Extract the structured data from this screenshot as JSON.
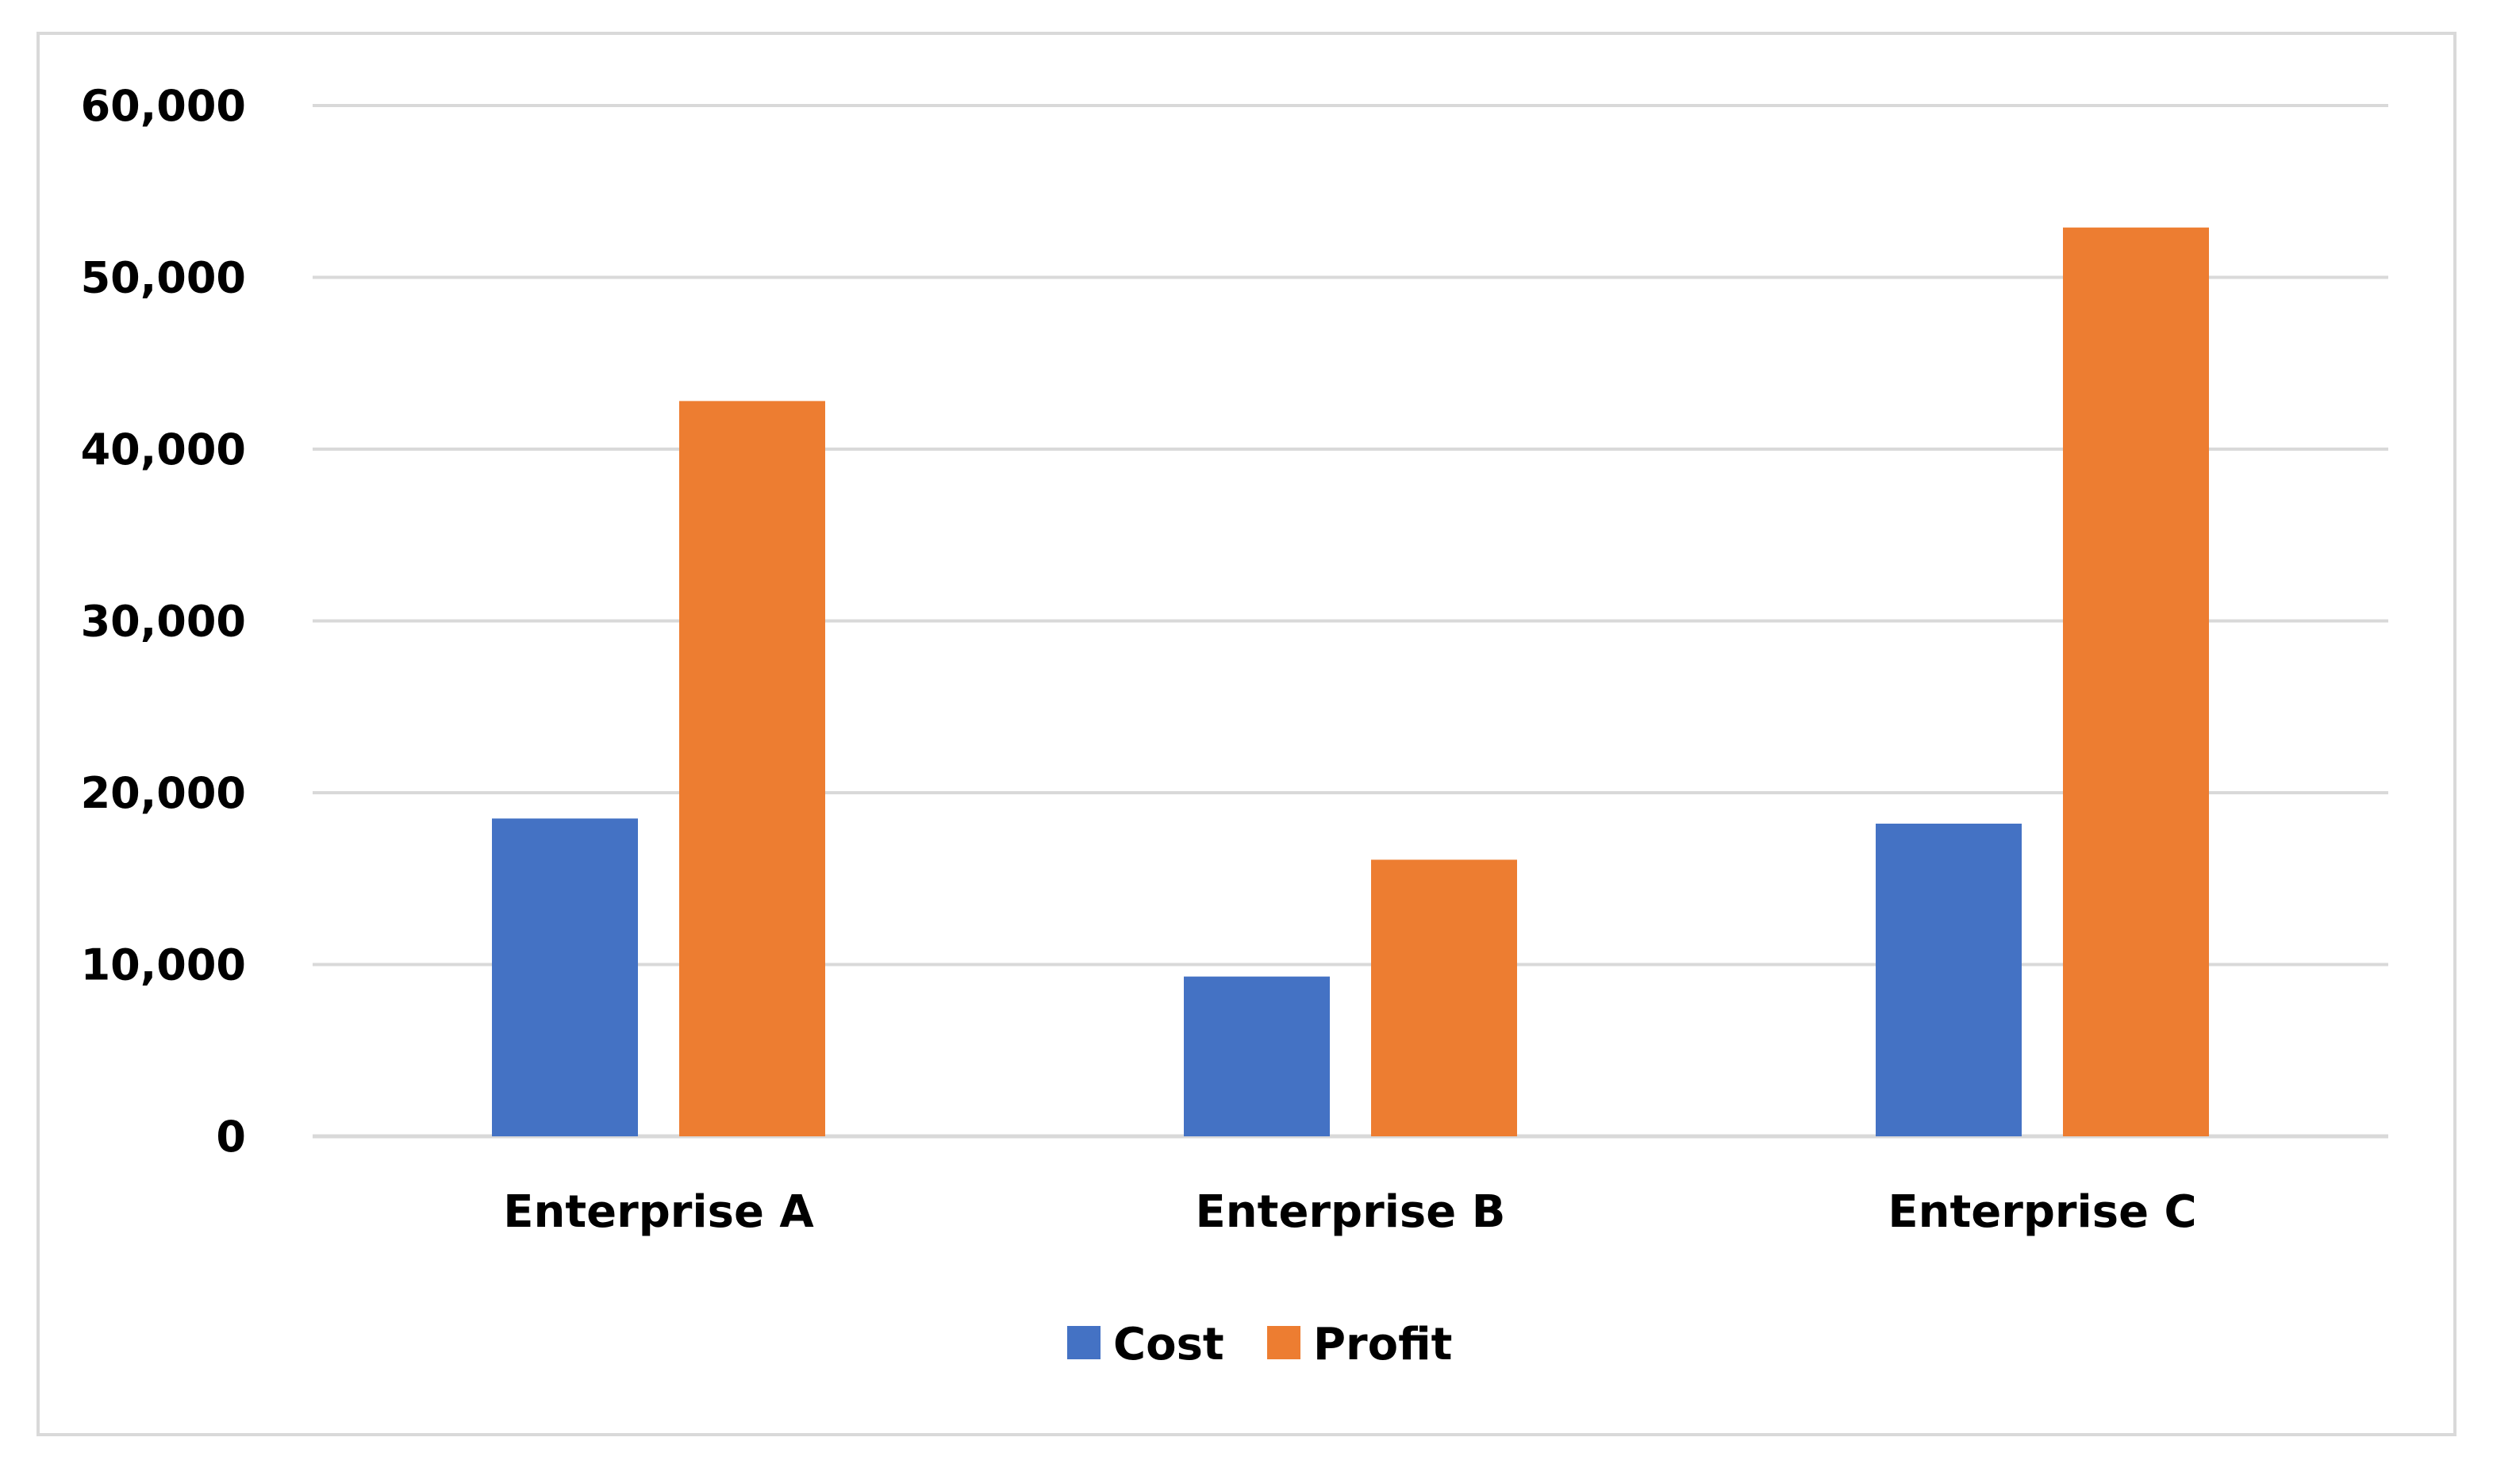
{
  "chart_data": {
    "type": "bar",
    "title": "",
    "xlabel": "",
    "ylabel": "",
    "categories": [
      "Enterprise A",
      "Enterprise B",
      "Enterprise C"
    ],
    "series": [
      {
        "name": "Cost",
        "color": "#4472c4",
        "values": [
          18500,
          9300,
          18200
        ]
      },
      {
        "name": "Profit",
        "color": "#ed7d31",
        "values": [
          42800,
          16100,
          52900
        ]
      }
    ],
    "ylim": [
      0,
      60000
    ],
    "yticks": [
      0,
      10000,
      20000,
      30000,
      40000,
      50000,
      60000
    ],
    "ytick_labels": [
      "0",
      "10,000",
      "20,000",
      "30,000",
      "40,000",
      "50,000",
      "60,000"
    ],
    "grid": true,
    "legend": "bottom-center",
    "gridline_color": "#d9d9d9"
  }
}
